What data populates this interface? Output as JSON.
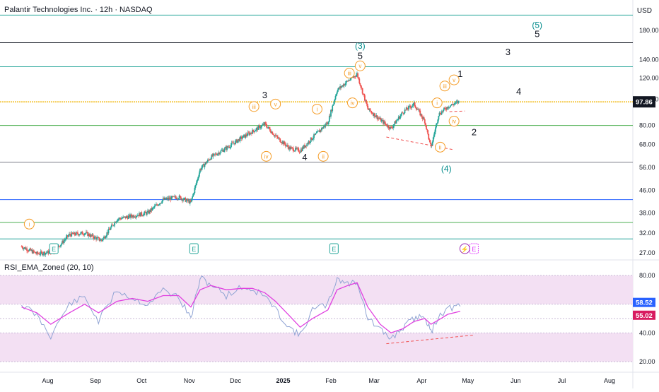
{
  "header": {
    "title": "Palantir Technologies Inc. · 12h · NASDAQ",
    "currency": "USD"
  },
  "rsi_panel": {
    "title": "RSI_EMA_Zoned (20, 10)"
  },
  "colors": {
    "up": "#26a69a",
    "down": "#ef5350",
    "teal_line": "#26a69a",
    "blue_line": "#2962ff",
    "green_line": "#4caf50",
    "gray_line": "#787b86",
    "price_line": "#f0b400",
    "wave_orange": "#f59d28",
    "wave_teal": "#008b8b",
    "rsi_line": "#90a4d4",
    "rsi_ema": "#e040e0",
    "zone_fill": "#f3e0f3",
    "dash_red": "#f05050",
    "rsi_badge": "#2962ff",
    "ema_badge": "#d81b60",
    "price_badge": "#131722",
    "earnings": "#26a69a",
    "earnings_future": "#e040fb"
  },
  "chart_data": [
    {
      "type": "candlestick",
      "title": "Palantir Technologies Inc. · 12h · NASDAQ",
      "y_scale": "log",
      "y_ticks": [
        180,
        140,
        120,
        100,
        80,
        68,
        56,
        46,
        38,
        32,
        27
      ],
      "y_tick_labels": [
        "180.00",
        "140.00",
        "120.00",
        "100.00",
        "80.00",
        "68.00",
        "56.00",
        "46.00",
        "38.00",
        "32.00",
        "27.00"
      ],
      "x_tick_labels": [
        "Aug",
        "Sep",
        "Oct",
        "Nov",
        "Dec",
        "2025",
        "Feb",
        "Mar",
        "Apr",
        "May",
        "Jun",
        "Jul",
        "Aug"
      ],
      "last_price": 97.86,
      "last_price_label": "97.86",
      "horizontal_levels": [
        {
          "price": 205,
          "color": "teal"
        },
        {
          "price": 162,
          "color": "black"
        },
        {
          "price": 132,
          "color": "teal"
        },
        {
          "price": 97.86,
          "color": "gold"
        },
        {
          "price": 80,
          "color": "green"
        },
        {
          "price": 58.5,
          "color": "gray"
        },
        {
          "price": 42.5,
          "color": "blue"
        },
        {
          "price": 35,
          "color": "green"
        },
        {
          "price": 30.4,
          "color": "teal"
        }
      ],
      "price_path": [
        [
          "2024-07-15",
          28.5
        ],
        [
          "2024-07-25",
          26.8
        ],
        [
          "2024-08-05",
          27.3
        ],
        [
          "2024-08-15",
          31.5
        ],
        [
          "2024-08-25",
          32.0
        ],
        [
          "2024-09-05",
          30.0
        ],
        [
          "2024-09-15",
          36.0
        ],
        [
          "2024-09-25",
          37.0
        ],
        [
          "2024-10-05",
          38.0
        ],
        [
          "2024-10-15",
          42.5
        ],
        [
          "2024-10-25",
          43.5
        ],
        [
          "2024-11-02",
          41.5
        ],
        [
          "2024-11-08",
          55.0
        ],
        [
          "2024-11-15",
          61.0
        ],
        [
          "2024-11-25",
          66.0
        ],
        [
          "2024-12-05",
          72.0
        ],
        [
          "2024-12-12",
          76.0
        ],
        [
          "2024-12-20",
          81.0
        ],
        [
          "2024-12-27",
          73.0
        ],
        [
          "2025-01-05",
          66.0
        ],
        [
          "2025-01-12",
          64.5
        ],
        [
          "2025-01-20",
          72.0
        ],
        [
          "2025-01-30",
          82.0
        ],
        [
          "2025-02-05",
          108.0
        ],
        [
          "2025-02-12",
          117.0
        ],
        [
          "2025-02-18",
          124.0
        ],
        [
          "2025-02-25",
          92.0
        ],
        [
          "2025-03-05",
          84.0
        ],
        [
          "2025-03-12",
          78.0
        ],
        [
          "2025-03-20",
          90.0
        ],
        [
          "2025-03-27",
          96.0
        ],
        [
          "2025-04-03",
          83.0
        ],
        [
          "2025-04-07",
          66.0
        ],
        [
          "2025-04-12",
          88.0
        ],
        [
          "2025-04-18",
          94.0
        ],
        [
          "2025-04-25",
          97.86
        ]
      ],
      "annotations": {
        "orange_circles": [
          {
            "label": "i",
            "date": "2024-07-20",
            "price": 34.5
          },
          {
            "label": "iii",
            "date": "2024-12-13",
            "price": 94.0
          },
          {
            "label": "v",
            "date": "2024-12-27",
            "price": 96.0
          },
          {
            "label": "iv",
            "date": "2024-12-21",
            "price": 61.5
          },
          {
            "label": "i",
            "date": "2025-01-23",
            "price": 92.0
          },
          {
            "label": "ii",
            "date": "2025-01-27",
            "price": 61.5
          },
          {
            "label": "iii",
            "date": "2025-02-13",
            "price": 125.0
          },
          {
            "label": "v",
            "date": "2025-02-20",
            "price": 133.0
          },
          {
            "label": "iv",
            "date": "2025-02-15",
            "price": 97.0
          },
          {
            "label": "i",
            "date": "2025-04-11",
            "price": 97.0
          },
          {
            "label": "iii",
            "date": "2025-04-16",
            "price": 112.0
          },
          {
            "label": "v",
            "date": "2025-04-22",
            "price": 118.0
          },
          {
            "label": "iv",
            "date": "2025-04-22",
            "price": 83.0
          },
          {
            "label": "ii",
            "date": "2025-04-13",
            "price": 66.5
          }
        ],
        "black_labels": [
          {
            "label": "3",
            "date": "2024-12-20",
            "price": 101.0
          },
          {
            "label": "4",
            "date": "2025-01-15",
            "price": 59.5
          },
          {
            "label": "5",
            "date": "2025-02-20",
            "price": 141.0
          },
          {
            "label": "1",
            "date": "2025-04-26",
            "price": 121.0
          },
          {
            "label": "2",
            "date": "2025-05-05",
            "price": 73.5
          },
          {
            "label": "3",
            "date": "2025-05-27",
            "price": 146.0
          },
          {
            "label": "4",
            "date": "2025-06-03",
            "price": 104.0
          },
          {
            "label": "5",
            "date": "2025-06-15",
            "price": 170.0
          }
        ],
        "teal_labels": [
          {
            "label": "(3)",
            "date": "2025-02-20",
            "price": 154.0
          },
          {
            "label": "(4)",
            "date": "2025-04-17",
            "price": 54.0
          },
          {
            "label": "(5)",
            "date": "2025-06-15",
            "price": 184.0
          }
        ],
        "dashed_lines": [
          {
            "color": "red",
            "from": [
              "2025-03-09",
              72.5
            ],
            "to": [
              "2025-04-22",
              65.0
            ]
          },
          {
            "color": "red",
            "from": [
              "2025-04-19",
              90.0
            ],
            "to": [
              "2025-04-29",
              90.5
            ]
          }
        ],
        "earnings_markers": [
          {
            "label": "E",
            "date": "2024-08-05"
          },
          {
            "label": "E",
            "date": "2024-11-04"
          },
          {
            "label": "E",
            "date": "2025-02-03"
          },
          {
            "label": "E",
            "date": "2025-05-05"
          }
        ],
        "event_marker": {
          "label": "⚡",
          "date": "2025-04-29"
        }
      }
    },
    {
      "type": "line",
      "title": "RSI_EMA_Zoned (20, 10)",
      "y_ticks": [
        80,
        60,
        40,
        20
      ],
      "y_tick_labels": [
        "80.00",
        "60.00",
        "40.00",
        "20.00"
      ],
      "zones": [
        {
          "from": 60,
          "to": 80
        },
        {
          "from": 20,
          "to": 40
        }
      ],
      "series": [
        {
          "name": "RSI",
          "last_label": "58.52",
          "values": [
            [
              "2024-07-15",
              60
            ],
            [
              "2024-07-25",
              52
            ],
            [
              "2024-08-03",
              38
            ],
            [
              "2024-08-15",
              60
            ],
            [
              "2024-08-25",
              65
            ],
            [
              "2024-09-03",
              48
            ],
            [
              "2024-09-15",
              70
            ],
            [
              "2024-09-25",
              64
            ],
            [
              "2024-10-05",
              60
            ],
            [
              "2024-10-15",
              70
            ],
            [
              "2024-10-25",
              65
            ],
            [
              "2024-11-02",
              50
            ],
            [
              "2024-11-08",
              78
            ],
            [
              "2024-11-15",
              74
            ],
            [
              "2024-11-25",
              66
            ],
            [
              "2024-12-05",
              72
            ],
            [
              "2024-12-12",
              70
            ],
            [
              "2024-12-20",
              66
            ],
            [
              "2024-12-27",
              56
            ],
            [
              "2025-01-05",
              44
            ],
            [
              "2025-01-12",
              38
            ],
            [
              "2025-01-20",
              56
            ],
            [
              "2025-01-30",
              60
            ],
            [
              "2025-02-05",
              78
            ],
            [
              "2025-02-12",
              74
            ],
            [
              "2025-02-18",
              76
            ],
            [
              "2025-02-25",
              50
            ],
            [
              "2025-03-05",
              42
            ],
            [
              "2025-03-12",
              36
            ],
            [
              "2025-03-20",
              44
            ],
            [
              "2025-03-27",
              50
            ],
            [
              "2025-04-03",
              52
            ],
            [
              "2025-04-07",
              40
            ],
            [
              "2025-04-12",
              52
            ],
            [
              "2025-04-18",
              57
            ],
            [
              "2025-04-26",
              58.52
            ]
          ]
        },
        {
          "name": "EMA",
          "last_label": "55.02",
          "values": [
            [
              "2024-07-15",
              58
            ],
            [
              "2024-07-25",
              54
            ],
            [
              "2024-08-03",
              46
            ],
            [
              "2024-08-15",
              54
            ],
            [
              "2024-08-25",
              60
            ],
            [
              "2024-09-03",
              54
            ],
            [
              "2024-09-15",
              62
            ],
            [
              "2024-09-25",
              64
            ],
            [
              "2024-10-05",
              62
            ],
            [
              "2024-10-15",
              66
            ],
            [
              "2024-10-25",
              66
            ],
            [
              "2024-11-02",
              58
            ],
            [
              "2024-11-08",
              70
            ],
            [
              "2024-11-15",
              73
            ],
            [
              "2024-11-25",
              70
            ],
            [
              "2024-12-05",
              71
            ],
            [
              "2024-12-12",
              71
            ],
            [
              "2024-12-20",
              68
            ],
            [
              "2024-12-27",
              62
            ],
            [
              "2025-01-05",
              52
            ],
            [
              "2025-01-12",
              44
            ],
            [
              "2025-01-20",
              50
            ],
            [
              "2025-01-30",
              56
            ],
            [
              "2025-02-05",
              70
            ],
            [
              "2025-02-12",
              73
            ],
            [
              "2025-02-18",
              75
            ],
            [
              "2025-02-25",
              58
            ],
            [
              "2025-03-05",
              46
            ],
            [
              "2025-03-12",
              40
            ],
            [
              "2025-03-20",
              43
            ],
            [
              "2025-03-27",
              48
            ],
            [
              "2025-04-03",
              50
            ],
            [
              "2025-04-07",
              46
            ],
            [
              "2025-04-12",
              49
            ],
            [
              "2025-04-18",
              53
            ],
            [
              "2025-04-26",
              55.02
            ]
          ]
        }
      ],
      "dashed_lines": [
        {
          "color": "red",
          "from": [
            "2025-03-09",
            32.5
          ],
          "to": [
            "2025-05-05",
            38.5
          ]
        }
      ]
    }
  ]
}
